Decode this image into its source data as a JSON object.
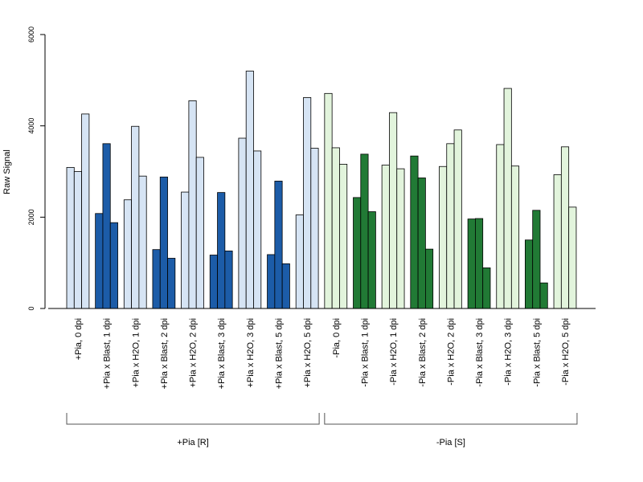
{
  "chart_data": {
    "type": "bar",
    "title": "",
    "xlabel": "",
    "ylabel": "Raw Signal",
    "ylim": [
      0,
      6000
    ],
    "yticks": [
      0,
      2000,
      4000,
      6000
    ],
    "grid": false,
    "legend": "none",
    "categories": [
      "+Pia, 0 dpi",
      "+Pia x Blast, 1 dpi",
      "+Pia x H2O, 1 dpi",
      "+Pia x Blast, 2 dpi",
      "+Pia x H2O, 2 dpi",
      "+Pia x Blast, 3 dpi",
      "+Pia x H2O, 3 dpi",
      "+Pia x Blast, 5 dpi",
      "+Pia x H2O, 5 dpi",
      "-Pia, 0 dpi",
      "-Pia x Blast, 1 dpi",
      "-Pia x H2O, 1 dpi",
      "-Pia x Blast, 2 dpi",
      "-Pia x H2O, 2 dpi",
      "-Pia x Blast, 3 dpi",
      "-Pia x H2O, 3 dpi",
      "-Pia x Blast, 5 dpi",
      "-Pia x H2O, 5 dpi"
    ],
    "values": [
      [
        3090,
        3000,
        4260
      ],
      [
        2080,
        3610,
        1880
      ],
      [
        2380,
        3990,
        2900
      ],
      [
        1290,
        2880,
        1100
      ],
      [
        2550,
        4550,
        3310
      ],
      [
        1170,
        2540,
        1260
      ],
      [
        3730,
        5200,
        3450
      ],
      [
        1180,
        2790,
        980
      ],
      [
        2050,
        4620,
        3510
      ],
      [
        4710,
        3520,
        3160
      ],
      [
        2430,
        3380,
        2120
      ],
      [
        3140,
        4290,
        3060
      ],
      [
        3340,
        2860,
        1300
      ],
      [
        3110,
        3610,
        3910
      ],
      [
        1960,
        1970,
        890
      ],
      [
        3590,
        4820,
        3120
      ],
      [
        1500,
        2150,
        560
      ],
      [
        2930,
        3540,
        2220
      ]
    ],
    "colors": [
      "#d6e4f4",
      "#1c5ca8",
      "#d6e4f4",
      "#1c5ca8",
      "#d6e4f4",
      "#1c5ca8",
      "#d6e4f4",
      "#1c5ca8",
      "#d6e4f4",
      "#e2f4dc",
      "#217a35",
      "#e2f4dc",
      "#217a35",
      "#e2f4dc",
      "#217a35",
      "#e2f4dc",
      "#217a35",
      "#e2f4dc"
    ],
    "groups": [
      {
        "label": "+Pia [R]",
        "from": 0,
        "to": 8
      },
      {
        "label": "-Pia [S]",
        "from": 9,
        "to": 17
      }
    ]
  }
}
